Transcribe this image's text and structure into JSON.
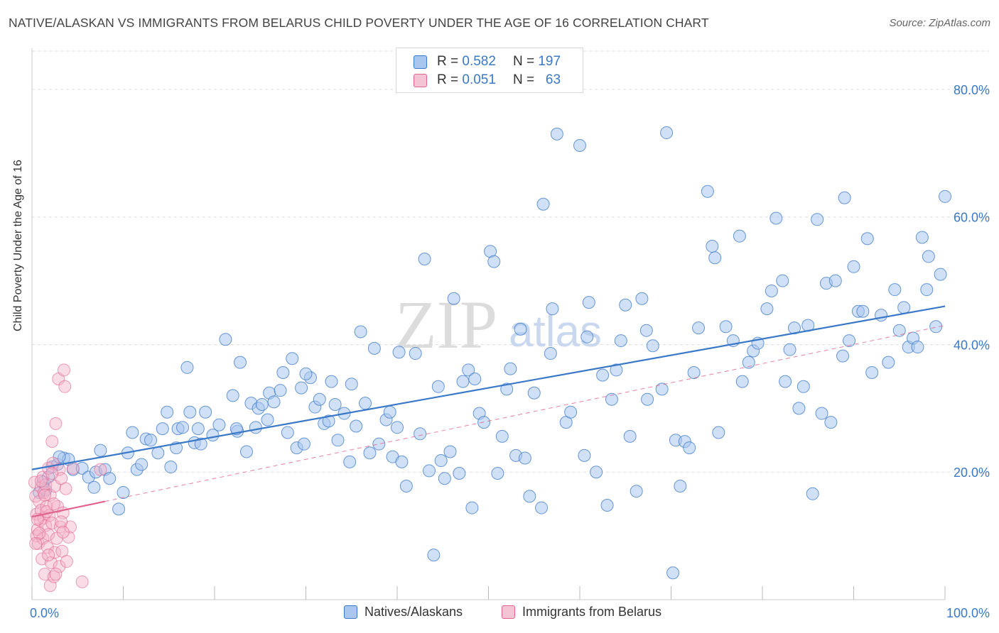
{
  "title": "NATIVE/ALASKAN VS IMMIGRANTS FROM BELARUS CHILD POVERTY UNDER THE AGE OF 16 CORRELATION CHART",
  "source": "Source: ZipAtlas.com",
  "colors": {
    "blue": "#3a78c8",
    "blue_fill": "#a9c6ee",
    "pink": "#e0628e",
    "pink_fill": "#f5b2c8",
    "grid": "#dddddd"
  },
  "legend": {
    "rows": [
      {
        "r_label": "R =",
        "r_value": "0.582",
        "n_label": "N =",
        "n_value": "197"
      },
      {
        "r_label": "R =",
        "r_value": "0.051",
        "n_label": "N =",
        "n_value": "63"
      }
    ]
  },
  "chart_data": {
    "type": "scatter",
    "xlabel": "",
    "ylabel": "Child Poverty Under the Age of 16",
    "xlim": [
      0,
      100
    ],
    "ylim": [
      0,
      86
    ],
    "x_tick_labels": [
      "0.0%",
      "100.0%"
    ],
    "y_ticks": [
      20,
      40,
      60,
      80
    ],
    "y_tick_labels": [
      "20.0%",
      "40.0%",
      "60.0%",
      "80.0%"
    ],
    "grid": true,
    "legend_placement": "top-center",
    "series": [
      {
        "name": "Natives/Alaskans",
        "color": "#3a78c8",
        "trend": {
          "x": [
            0,
            100
          ],
          "y": [
            20.4,
            46.0
          ]
        },
        "points": [
          [
            0.8,
            16.8
          ],
          [
            1.2,
            18.4
          ],
          [
            1.5,
            17.2
          ],
          [
            1.8,
            19.2
          ],
          [
            2.2,
            20.8
          ],
          [
            2.8,
            21.2
          ],
          [
            3.5,
            22.2
          ],
          [
            4.0,
            22.0
          ],
          [
            4.5,
            20.4
          ],
          [
            5.5,
            20.6
          ],
          [
            6.2,
            19.2
          ],
          [
            7.0,
            20.0
          ],
          [
            7.5,
            23.4
          ],
          [
            8.0,
            20.4
          ],
          [
            8.5,
            19.0
          ],
          [
            9.5,
            14.2
          ],
          [
            10.0,
            16.8
          ],
          [
            10.5,
            23.0
          ],
          [
            11.0,
            26.2
          ],
          [
            11.5,
            20.4
          ],
          [
            12.0,
            21.2
          ],
          [
            12.5,
            25.2
          ],
          [
            13.0,
            25.0
          ],
          [
            13.8,
            23.0
          ],
          [
            14.3,
            26.8
          ],
          [
            14.8,
            29.4
          ],
          [
            15.2,
            20.8
          ],
          [
            16.0,
            26.8
          ],
          [
            16.5,
            27.0
          ],
          [
            17.0,
            36.4
          ],
          [
            17.3,
            29.4
          ],
          [
            17.8,
            24.6
          ],
          [
            18.2,
            26.8
          ],
          [
            18.5,
            24.4
          ],
          [
            19.0,
            29.4
          ],
          [
            19.8,
            25.8
          ],
          [
            20.5,
            27.4
          ],
          [
            21.2,
            40.8
          ],
          [
            22.0,
            32.0
          ],
          [
            22.5,
            26.4
          ],
          [
            22.8,
            37.2
          ],
          [
            23.5,
            23.2
          ],
          [
            24.0,
            30.8
          ],
          [
            24.5,
            27.0
          ],
          [
            24.8,
            30.0
          ],
          [
            25.2,
            30.6
          ],
          [
            25.8,
            28.2
          ],
          [
            26.0,
            32.4
          ],
          [
            26.5,
            31.0
          ],
          [
            27.2,
            32.8
          ],
          [
            27.5,
            35.6
          ],
          [
            28.0,
            26.2
          ],
          [
            28.5,
            37.8
          ],
          [
            29.0,
            23.8
          ],
          [
            29.5,
            33.2
          ],
          [
            29.8,
            24.4
          ],
          [
            30.5,
            34.8
          ],
          [
            31.0,
            30.2
          ],
          [
            31.5,
            31.4
          ],
          [
            32.0,
            27.6
          ],
          [
            32.5,
            28.0
          ],
          [
            32.8,
            34.2
          ],
          [
            33.5,
            25.0
          ],
          [
            34.2,
            29.2
          ],
          [
            34.8,
            21.6
          ],
          [
            35.0,
            33.8
          ],
          [
            35.5,
            27.2
          ],
          [
            36.5,
            30.8
          ],
          [
            37.0,
            23.0
          ],
          [
            37.5,
            39.4
          ],
          [
            38.0,
            24.4
          ],
          [
            38.8,
            28.2
          ],
          [
            39.2,
            29.4
          ],
          [
            39.5,
            22.4
          ],
          [
            40.0,
            27.0
          ],
          [
            40.5,
            21.6
          ],
          [
            41.0,
            17.8
          ],
          [
            42.0,
            38.6
          ],
          [
            42.5,
            26.0
          ],
          [
            43.0,
            53.4
          ],
          [
            43.5,
            20.2
          ],
          [
            44.0,
            7.0
          ],
          [
            44.5,
            33.4
          ],
          [
            44.8,
            21.8
          ],
          [
            45.2,
            19.0
          ],
          [
            45.8,
            23.2
          ],
          [
            46.2,
            47.2
          ],
          [
            46.8,
            19.8
          ],
          [
            47.2,
            34.2
          ],
          [
            47.8,
            36.0
          ],
          [
            48.2,
            14.4
          ],
          [
            48.5,
            34.6
          ],
          [
            49.0,
            29.2
          ],
          [
            49.5,
            27.8
          ],
          [
            50.2,
            54.6
          ],
          [
            50.6,
            53.0
          ],
          [
            51.0,
            19.8
          ],
          [
            51.5,
            25.6
          ],
          [
            52.0,
            33.0
          ],
          [
            53.0,
            22.6
          ],
          [
            53.5,
            42.4
          ],
          [
            54.0,
            22.2
          ],
          [
            54.5,
            16.2
          ],
          [
            55.0,
            32.4
          ],
          [
            55.8,
            14.4
          ],
          [
            56.0,
            62.0
          ],
          [
            56.8,
            38.6
          ],
          [
            57.0,
            45.6
          ],
          [
            57.5,
            73.0
          ],
          [
            58.5,
            27.8
          ],
          [
            59.0,
            29.4
          ],
          [
            60.0,
            71.2
          ],
          [
            60.5,
            22.6
          ],
          [
            61.0,
            46.6
          ],
          [
            61.8,
            20.0
          ],
          [
            62.5,
            35.2
          ],
          [
            63.0,
            14.8
          ],
          [
            63.5,
            31.4
          ],
          [
            64.0,
            36.0
          ],
          [
            64.5,
            40.6
          ],
          [
            65.0,
            46.2
          ],
          [
            65.5,
            25.6
          ],
          [
            66.2,
            17.0
          ],
          [
            66.8,
            47.2
          ],
          [
            67.3,
            42.2
          ],
          [
            68.0,
            39.8
          ],
          [
            69.0,
            33.0
          ],
          [
            69.5,
            73.2
          ],
          [
            70.5,
            25.0
          ],
          [
            71.0,
            17.8
          ],
          [
            71.5,
            24.8
          ],
          [
            72.0,
            23.8
          ],
          [
            72.5,
            35.6
          ],
          [
            73.0,
            42.6
          ],
          [
            74.0,
            64.0
          ],
          [
            74.5,
            55.4
          ],
          [
            74.8,
            53.6
          ],
          [
            75.2,
            26.2
          ],
          [
            76.0,
            42.8
          ],
          [
            76.8,
            40.6
          ],
          [
            77.5,
            57.0
          ],
          [
            77.8,
            34.2
          ],
          [
            78.5,
            37.2
          ],
          [
            79.0,
            39.0
          ],
          [
            79.5,
            40.2
          ],
          [
            80.5,
            45.6
          ],
          [
            81.0,
            48.4
          ],
          [
            81.5,
            59.8
          ],
          [
            82.2,
            50.0
          ],
          [
            82.5,
            34.2
          ],
          [
            83.0,
            39.2
          ],
          [
            83.5,
            42.6
          ],
          [
            84.0,
            30.0
          ],
          [
            84.5,
            33.4
          ],
          [
            85.0,
            43.0
          ],
          [
            85.5,
            16.6
          ],
          [
            86.0,
            59.6
          ],
          [
            86.5,
            29.2
          ],
          [
            87.0,
            49.6
          ],
          [
            87.5,
            27.8
          ],
          [
            88.0,
            50.0
          ],
          [
            89.0,
            63.0
          ],
          [
            89.5,
            40.6
          ],
          [
            90.0,
            52.2
          ],
          [
            90.5,
            45.2
          ],
          [
            91.0,
            45.2
          ],
          [
            91.5,
            56.6
          ],
          [
            92.0,
            35.6
          ],
          [
            93.0,
            44.6
          ],
          [
            93.8,
            37.2
          ],
          [
            94.5,
            48.6
          ],
          [
            95.0,
            42.2
          ],
          [
            95.5,
            45.8
          ],
          [
            96.0,
            39.6
          ],
          [
            96.5,
            41.0
          ],
          [
            97.0,
            39.6
          ],
          [
            97.5,
            56.8
          ],
          [
            98.0,
            48.6
          ],
          [
            98.2,
            53.8
          ],
          [
            99.0,
            42.8
          ],
          [
            99.5,
            51.0
          ],
          [
            100.0,
            63.2
          ],
          [
            30.0,
            35.4
          ],
          [
            40.2,
            38.8
          ],
          [
            52.4,
            36.2
          ],
          [
            70.2,
            4.2
          ],
          [
            36.0,
            42.0
          ],
          [
            60.8,
            41.2
          ],
          [
            67.4,
            31.4
          ],
          [
            88.8,
            38.2
          ],
          [
            3.0,
            22.4
          ],
          [
            6.8,
            17.6
          ],
          [
            15.8,
            23.8
          ],
          [
            22.4,
            26.8
          ],
          [
            33.2,
            30.6
          ]
        ]
      },
      {
        "name": "Immigrants from Belarus",
        "color": "#e0628e",
        "trend": {
          "x": [
            0,
            8
          ],
          "y": [
            13.0,
            15.4
          ]
        },
        "trend_dashed": {
          "x": [
            8,
            100
          ],
          "y": [
            15.4,
            43.0
          ]
        },
        "points": [
          [
            0.3,
            18.4
          ],
          [
            0.4,
            16.2
          ],
          [
            0.5,
            13.4
          ],
          [
            0.5,
            10.0
          ],
          [
            0.6,
            11.0
          ],
          [
            0.7,
            8.8
          ],
          [
            0.8,
            15.4
          ],
          [
            0.9,
            12.4
          ],
          [
            1.0,
            17.6
          ],
          [
            1.0,
            14.0
          ],
          [
            1.1,
            6.4
          ],
          [
            1.2,
            19.2
          ],
          [
            1.2,
            9.6
          ],
          [
            1.3,
            16.8
          ],
          [
            1.3,
            12.8
          ],
          [
            1.4,
            4.0
          ],
          [
            1.5,
            18.0
          ],
          [
            1.5,
            11.6
          ],
          [
            1.6,
            14.6
          ],
          [
            1.7,
            8.2
          ],
          [
            1.8,
            20.6
          ],
          [
            1.8,
            10.2
          ],
          [
            1.9,
            13.2
          ],
          [
            2.0,
            2.2
          ],
          [
            2.0,
            16.4
          ],
          [
            2.1,
            5.8
          ],
          [
            2.2,
            24.8
          ],
          [
            2.2,
            12.0
          ],
          [
            2.3,
            21.4
          ],
          [
            2.4,
            3.6
          ],
          [
            2.5,
            7.4
          ],
          [
            2.5,
            17.8
          ],
          [
            2.6,
            27.6
          ],
          [
            2.7,
            9.6
          ],
          [
            2.8,
            14.6
          ],
          [
            2.9,
            34.6
          ],
          [
            3.0,
            20.4
          ],
          [
            3.0,
            5.2
          ],
          [
            3.1,
            11.4
          ],
          [
            3.2,
            19.0
          ],
          [
            3.3,
            7.6
          ],
          [
            3.4,
            13.6
          ],
          [
            3.5,
            36.0
          ],
          [
            3.6,
            33.4
          ],
          [
            3.7,
            17.4
          ],
          [
            3.8,
            6.0
          ],
          [
            4.0,
            9.8
          ],
          [
            4.2,
            11.4
          ],
          [
            4.5,
            20.6
          ],
          [
            0.8,
            10.4
          ],
          [
            1.6,
            13.8
          ],
          [
            2.4,
            15.0
          ],
          [
            3.2,
            12.2
          ],
          [
            0.4,
            8.8
          ],
          [
            1.0,
            18.6
          ],
          [
            1.8,
            7.0
          ],
          [
            2.6,
            4.0
          ],
          [
            3.4,
            10.6
          ],
          [
            0.6,
            12.6
          ],
          [
            1.4,
            16.4
          ],
          [
            2.2,
            19.8
          ],
          [
            5.5,
            2.8
          ],
          [
            7.5,
            20.4
          ]
        ]
      }
    ]
  },
  "bottom_legend": [
    "Natives/Alaskans",
    "Immigrants from Belarus"
  ]
}
